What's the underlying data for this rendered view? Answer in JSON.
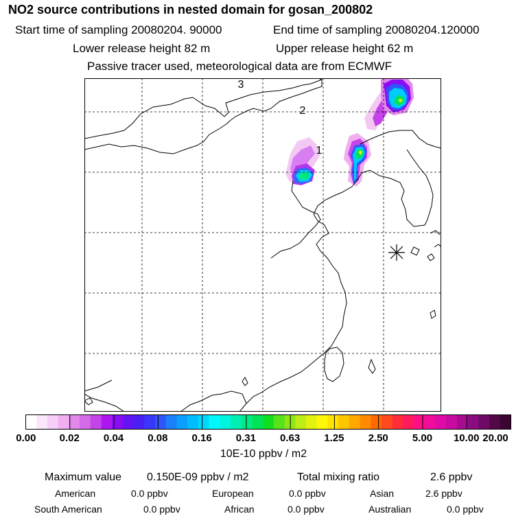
{
  "header": {
    "title": "NO2 source contributions in nested domain for gosan_200802",
    "start_label": "Start time of sampling 20080204. 90000",
    "end_label": "End time of sampling 20080204.120000",
    "lower_label": "Lower release height   82 m",
    "upper_label": "Upper release height   62 m",
    "tracer_note": "Passive tracer used, meteorological data are from ECMWF"
  },
  "map": {
    "markers": [
      {
        "label": "1"
      },
      {
        "label": "2"
      },
      {
        "label": "3"
      }
    ],
    "receptor_icon": "asterisk-icon"
  },
  "colorbar": {
    "tick_labels": [
      "0.00",
      "0.02",
      "0.04",
      "0.08",
      "0.16",
      "0.31",
      "0.63",
      "1.25",
      "2.50",
      "5.00",
      "10.00",
      "20.00"
    ],
    "unit": "10E-10 ppbv / m2",
    "colors": [
      "#ffffff",
      "#fbe6fb",
      "#f7cef7",
      "#f0b0f0",
      "#e388ea",
      "#d46ae8",
      "#c544ea",
      "#ad18f2",
      "#8a0cf5",
      "#6414f4",
      "#4a1ff6",
      "#3a36fb",
      "#2f56fd",
      "#1c80fd",
      "#0b9ffd",
      "#00bdfd",
      "#00d9fd",
      "#00f8fc",
      "#00f5de",
      "#00efb5",
      "#00e985",
      "#00e356",
      "#10df20",
      "#58e21a",
      "#8ee618",
      "#bdec16",
      "#e2f20f",
      "#fff70a",
      "#ffe300",
      "#ffc600",
      "#ffa800",
      "#ff8a00",
      "#ff6a00",
      "#ff4a20",
      "#ff2d3a",
      "#ff1a5e",
      "#ff0f85",
      "#f20c9c",
      "#e00aa8",
      "#c80aa0",
      "#a80b90",
      "#8a0c80",
      "#6e0a66",
      "#520848",
      "#3a0530"
    ]
  },
  "summary": {
    "max_label": "Maximum value",
    "max_value": "0.150E-09 ppbv / m2",
    "total_label": "Total mixing ratio",
    "total_value": "2.6 ppbv",
    "regions": [
      {
        "name": "American",
        "value": "0.0 ppbv"
      },
      {
        "name": "European",
        "value": "0.0 ppbv"
      },
      {
        "name": "Asian",
        "value": "2.6 ppbv"
      },
      {
        "name": "South American",
        "value": "0.0 ppbv"
      },
      {
        "name": "African",
        "value": "0.0 ppbv"
      },
      {
        "name": "Australian",
        "value": "0.0 ppbv"
      }
    ]
  }
}
